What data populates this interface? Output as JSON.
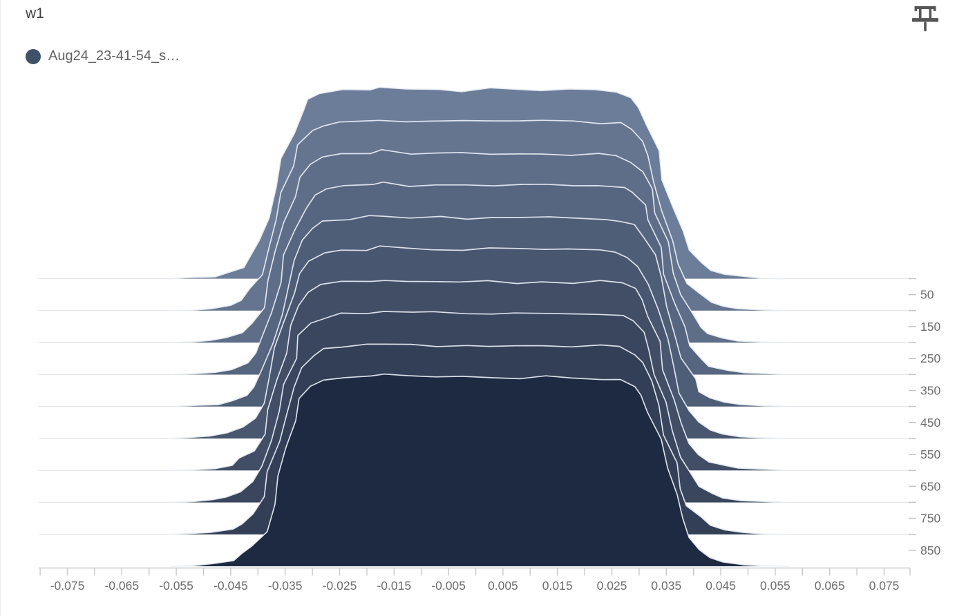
{
  "header": {
    "title": "w1"
  },
  "toolbar": {
    "pin_icon": "push-pin",
    "pin_color": "#565656"
  },
  "legend": {
    "series_label": "Aug24_23-41-54_s…",
    "series_color": "#3f5069"
  },
  "chart_data": {
    "type": "area",
    "variant": "histogram-offset-ridgeline",
    "title": "w1",
    "legend_position": "top-left",
    "grid": true,
    "series": [
      {
        "name": "Aug24_23-41-54_s…",
        "color": "#3f5069"
      }
    ],
    "x_range": [
      -0.08,
      0.08
    ],
    "x_tick_step_minor": 0.005,
    "x_tick_labels": [
      "-0.075",
      "-0.065",
      "-0.055",
      "-0.045",
      "-0.035",
      "-0.025",
      "-0.015",
      "-0.005",
      "0.005",
      "0.015",
      "0.025",
      "0.035",
      "0.045",
      "0.055",
      "0.065",
      "0.075"
    ],
    "y_tick_labels": [
      "50",
      "150",
      "250",
      "350",
      "450",
      "550",
      "650",
      "750",
      "850"
    ],
    "steps": [
      0,
      100,
      200,
      300,
      400,
      500,
      600,
      700,
      800,
      900
    ],
    "ridge_fill_colors": [
      "#6c7d99",
      "#657590",
      "#5e6e88",
      "#566680",
      "#4f5e77",
      "#48566f",
      "#414e66",
      "#3a465e",
      "#333f56",
      "#1d2a42"
    ],
    "ridge_outline_color": "#e9eef5",
    "grid_color": "#e4e4e4",
    "axis_line_color": "#c9c9c9",
    "tick_color": "#c6c6c6",
    "tick_label_color": "#6e6e6e",
    "distribution_profile": [
      [
        -0.056,
        0.0
      ],
      [
        -0.052,
        0.004
      ],
      [
        -0.048,
        0.012
      ],
      [
        -0.045,
        0.028
      ],
      [
        -0.0425,
        0.06
      ],
      [
        -0.0405,
        0.11
      ],
      [
        -0.039,
        0.19
      ],
      [
        -0.0375,
        0.32
      ],
      [
        -0.036,
        0.48
      ],
      [
        -0.0347,
        0.62
      ],
      [
        -0.0333,
        0.76
      ],
      [
        -0.0318,
        0.87
      ],
      [
        -0.03,
        0.935
      ],
      [
        -0.0278,
        0.966
      ],
      [
        -0.024,
        0.982
      ],
      [
        -0.0195,
        0.99
      ],
      [
        -0.0167,
        1.0
      ],
      [
        -0.012,
        0.988
      ],
      [
        -0.007,
        0.99
      ],
      [
        -0.002,
        0.986
      ],
      [
        0.003,
        0.99
      ],
      [
        0.008,
        0.985
      ],
      [
        0.013,
        0.99
      ],
      [
        0.018,
        0.986
      ],
      [
        0.023,
        0.984
      ],
      [
        0.0268,
        0.975
      ],
      [
        0.029,
        0.945
      ],
      [
        0.0307,
        0.89
      ],
      [
        0.0322,
        0.8
      ],
      [
        0.0337,
        0.67
      ],
      [
        0.0352,
        0.52
      ],
      [
        0.0366,
        0.37
      ],
      [
        0.038,
        0.245
      ],
      [
        0.0395,
        0.15
      ],
      [
        0.0412,
        0.085
      ],
      [
        0.0432,
        0.045
      ],
      [
        0.0458,
        0.022
      ],
      [
        0.049,
        0.01
      ],
      [
        0.053,
        0.004
      ],
      [
        0.0575,
        0.0
      ]
    ]
  }
}
